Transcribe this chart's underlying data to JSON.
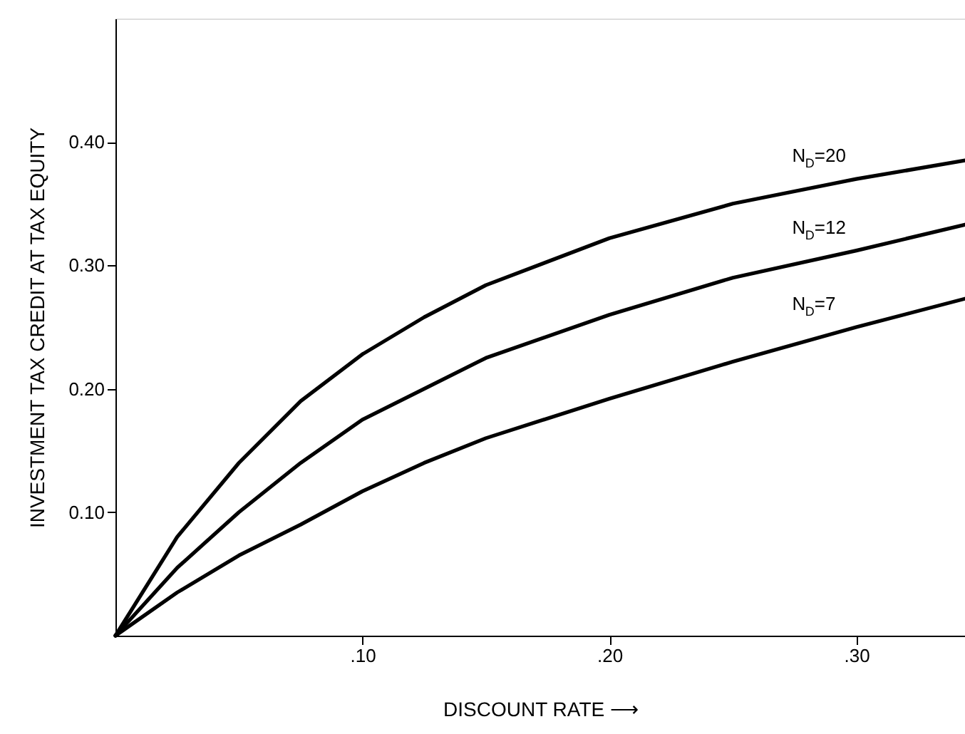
{
  "chart_data": {
    "type": "line",
    "xlabel": "DISCOUNT RATE ⟶",
    "ylabel": "INVESTMENT TAX CREDIT AT TAX EQUITY",
    "x": [
      0,
      0.025,
      0.05,
      0.075,
      0.1,
      0.125,
      0.15,
      0.2,
      0.25,
      0.3,
      0.344
    ],
    "series": [
      {
        "name": "N$_{D}$=20",
        "color": "#000000",
        "values": [
          0,
          0.08,
          0.14,
          0.19,
          0.228,
          0.258,
          0.284,
          0.322,
          0.35,
          0.37,
          0.385
        ]
      },
      {
        "name": "N$_{D}$=12",
        "color": "#000000",
        "values": [
          0,
          0.055,
          0.1,
          0.14,
          0.175,
          0.2,
          0.225,
          0.26,
          0.29,
          0.312,
          0.333
        ]
      },
      {
        "name": "N$_{D}$=7",
        "color": "#000000",
        "values": [
          0,
          0.035,
          0.065,
          0.09,
          0.117,
          0.14,
          0.16,
          0.192,
          0.222,
          0.25,
          0.273
        ]
      }
    ],
    "xlim": [
      0,
      0.344
    ],
    "ylim": [
      0,
      0.5
    ],
    "xticks": [
      {
        "value": 0.1,
        "label": ".10"
      },
      {
        "value": 0.2,
        "label": ".20"
      },
      {
        "value": 0.3,
        "label": ".30"
      }
    ],
    "yticks": [
      {
        "value": 0.1,
        "label": "0.10"
      },
      {
        "value": 0.2,
        "label": "0.20"
      },
      {
        "value": 0.3,
        "label": "0.30"
      },
      {
        "value": 0.4,
        "label": "0.40"
      }
    ],
    "grid": false,
    "marker": "none",
    "line_style": "solid"
  }
}
